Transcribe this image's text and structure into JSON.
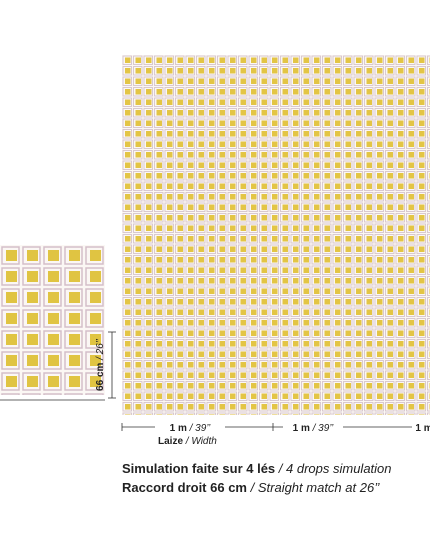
{
  "dimensions": {
    "height": {
      "value": "66 cm",
      "imperial": "/ 26’’"
    },
    "widths": [
      {
        "value": "1 m",
        "imperial": "/ 39’’"
      },
      {
        "value": "1 m",
        "imperial": "/ 39’’"
      },
      {
        "value": "1 m"
      }
    ],
    "width_caption": {
      "fr": "Laize",
      "en": "/ Width"
    }
  },
  "caption": {
    "line1": {
      "fr": "Simulation faite sur 4 lés",
      "en": "/ 4 drops simulation"
    },
    "line2": {
      "fr": "Raccord droit 66 cm",
      "en": "/ Straight match at 26’’"
    }
  }
}
